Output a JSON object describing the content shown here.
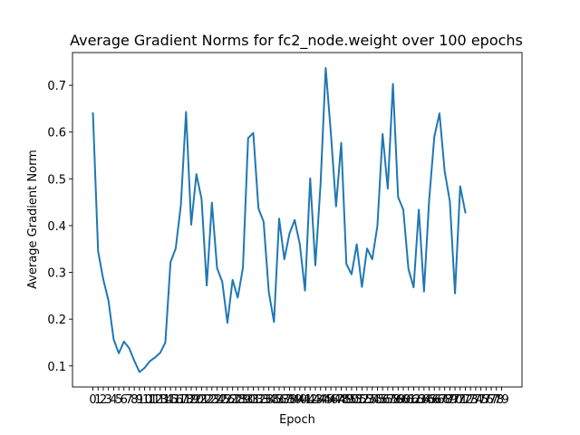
{
  "chart_data": {
    "type": "line",
    "title": "Average Gradient Norms for fc2_node.weight over 100 epochs",
    "xlabel": "Epoch",
    "ylabel": "Average Gradient Norm",
    "xlim": [
      -3.95,
      82.95
    ],
    "ylim": [
      0.055,
      0.77
    ],
    "x_ticks": [
      0,
      1,
      2,
      3,
      4,
      5,
      6,
      7,
      8,
      9,
      10,
      11,
      12,
      13,
      14,
      15,
      16,
      17,
      18,
      19,
      20,
      21,
      22,
      23,
      24,
      25,
      26,
      27,
      28,
      29,
      30,
      31,
      32,
      33,
      34,
      35,
      36,
      37,
      38,
      39,
      40,
      41,
      42,
      43,
      44,
      45,
      46,
      47,
      48,
      49,
      50,
      51,
      52,
      53,
      54,
      55,
      56,
      57,
      58,
      59,
      60,
      61,
      62,
      63,
      64,
      65,
      66,
      67,
      68,
      69,
      70,
      71,
      72,
      73,
      74,
      75,
      76,
      77,
      78,
      79
    ],
    "y_ticks": [
      0.1,
      0.2,
      0.3,
      0.4,
      0.5,
      0.6,
      0.7
    ],
    "y_tick_labels": [
      "0.1",
      "0.2",
      "0.3",
      "0.4",
      "0.5",
      "0.6",
      "0.7"
    ],
    "grid": false,
    "color": "#1f77b4",
    "series": [
      {
        "x": [
          0,
          1,
          2,
          3,
          4,
          5,
          6,
          7,
          8,
          9,
          10,
          11,
          12,
          13,
          14,
          15,
          16,
          17,
          18,
          19,
          20,
          21,
          22,
          23,
          24,
          25,
          26,
          27,
          28,
          29,
          30,
          31,
          32,
          33,
          34,
          35,
          36,
          37,
          38,
          39,
          40,
          41,
          42,
          43,
          44,
          45,
          46,
          47,
          48,
          49,
          50,
          51,
          52,
          53,
          54,
          55,
          56,
          57,
          58,
          59,
          60,
          61,
          62,
          63,
          64,
          65,
          66,
          67,
          68,
          69,
          70,
          71,
          72
        ],
        "y": [
          0.64,
          0.345,
          0.285,
          0.24,
          0.157,
          0.127,
          0.152,
          0.138,
          0.111,
          0.087,
          0.096,
          0.11,
          0.118,
          0.128,
          0.15,
          0.322,
          0.351,
          0.444,
          0.643,
          0.402,
          0.51,
          0.457,
          0.272,
          0.449,
          0.309,
          0.28,
          0.192,
          0.284,
          0.246,
          0.31,
          0.587,
          0.598,
          0.437,
          0.408,
          0.258,
          0.194,
          0.415,
          0.328,
          0.383,
          0.412,
          0.36,
          0.261,
          0.501,
          0.315,
          0.487,
          0.737,
          0.598,
          0.441,
          0.577,
          0.318,
          0.296,
          0.36,
          0.269,
          0.351,
          0.328,
          0.4,
          0.596,
          0.479,
          0.703,
          0.461,
          0.434,
          0.307,
          0.268,
          0.434,
          0.259,
          0.455,
          0.59,
          0.64,
          0.516,
          0.452,
          0.255,
          0.484,
          0.428
        ]
      }
    ]
  }
}
